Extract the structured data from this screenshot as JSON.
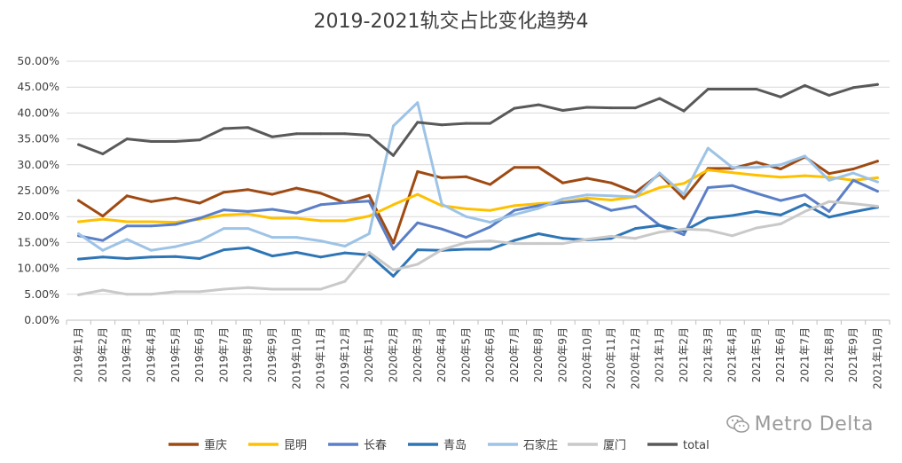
{
  "chart_data": {
    "type": "line",
    "title": "2019-2021轨交占比变化趋势4",
    "ylim": [
      0,
      0.5
    ],
    "yticks": [
      "0.00%",
      "5.00%",
      "10.00%",
      "15.00%",
      "20.00%",
      "25.00%",
      "30.00%",
      "35.00%",
      "40.00%",
      "45.00%",
      "50.00%"
    ],
    "grid": true,
    "legend_position": "bottom",
    "categories": [
      "2019年1月",
      "2019年2月",
      "2019年3月",
      "2019年4月",
      "2019年5月",
      "2019年6月",
      "2019年7月",
      "2019年8月",
      "2019年9月",
      "2019年10月",
      "2019年11月",
      "2019年12月",
      "2020年1月",
      "2020年2月",
      "2020年3月",
      "2020年4月",
      "2020年5月",
      "2020年6月",
      "2020年7月",
      "2020年8月",
      "2020年9月",
      "2020年10月",
      "2020年11月",
      "2020年12月",
      "2021年1月",
      "2021年2月",
      "2021年3月",
      "2021年4月",
      "2021年5月",
      "2021年6月",
      "2021年7月",
      "2021年8月",
      "2021年9月",
      "2021年10月"
    ],
    "series": [
      {
        "name": "重庆",
        "color": "#9E4A12",
        "values": [
          0.231,
          0.201,
          0.24,
          0.229,
          0.236,
          0.226,
          0.247,
          0.252,
          0.243,
          0.255,
          0.245,
          0.227,
          0.241,
          0.149,
          0.287,
          0.275,
          0.277,
          0.262,
          0.295,
          0.295,
          0.265,
          0.274,
          0.265,
          0.247,
          0.282,
          0.235,
          0.293,
          0.293,
          0.305,
          0.292,
          0.315,
          0.283,
          0.292,
          0.307
        ]
      },
      {
        "name": "昆明",
        "color": "#FFC000",
        "values": [
          0.19,
          0.195,
          0.19,
          0.19,
          0.189,
          0.195,
          0.203,
          0.205,
          0.197,
          0.197,
          0.192,
          0.192,
          0.201,
          0.223,
          0.243,
          0.221,
          0.215,
          0.212,
          0.221,
          0.225,
          0.228,
          0.236,
          0.232,
          0.238,
          0.256,
          0.264,
          0.29,
          0.285,
          0.28,
          0.276,
          0.279,
          0.276,
          0.27,
          0.275
        ]
      },
      {
        "name": "长春",
        "color": "#5B7FC7",
        "values": [
          0.163,
          0.154,
          0.182,
          0.182,
          0.185,
          0.197,
          0.213,
          0.21,
          0.214,
          0.207,
          0.223,
          0.227,
          0.23,
          0.137,
          0.188,
          0.176,
          0.16,
          0.18,
          0.212,
          0.221,
          0.227,
          0.231,
          0.212,
          0.22,
          0.183,
          0.165,
          0.256,
          0.26,
          0.245,
          0.231,
          0.242,
          0.21,
          0.27,
          0.249
        ]
      },
      {
        "name": "青岛",
        "color": "#2E75B6",
        "values": [
          0.118,
          0.122,
          0.119,
          0.122,
          0.123,
          0.119,
          0.136,
          0.14,
          0.124,
          0.131,
          0.122,
          0.13,
          0.126,
          0.085,
          0.136,
          0.135,
          0.137,
          0.137,
          0.154,
          0.167,
          0.158,
          0.155,
          0.158,
          0.177,
          0.183,
          0.172,
          0.197,
          0.202,
          0.21,
          0.203,
          0.224,
          0.199,
          0.209,
          0.218
        ]
      },
      {
        "name": "石家庄",
        "color": "#9DC3E6",
        "values": [
          0.167,
          0.135,
          0.156,
          0.135,
          0.142,
          0.153,
          0.177,
          0.177,
          0.16,
          0.16,
          0.153,
          0.143,
          0.167,
          0.375,
          0.42,
          0.224,
          0.2,
          0.189,
          0.204,
          0.216,
          0.234,
          0.242,
          0.24,
          0.238,
          0.284,
          0.243,
          0.332,
          0.295,
          0.295,
          0.3,
          0.317,
          0.27,
          0.284,
          0.267
        ]
      },
      {
        "name": "厦门",
        "color": "#C9C9C9",
        "values": [
          0.049,
          0.058,
          0.05,
          0.05,
          0.055,
          0.055,
          0.06,
          0.063,
          0.06,
          0.06,
          0.06,
          0.075,
          0.131,
          0.097,
          0.108,
          0.136,
          0.15,
          0.153,
          0.148,
          0.148,
          0.148,
          0.156,
          0.162,
          0.158,
          0.17,
          0.176,
          0.174,
          0.163,
          0.178,
          0.186,
          0.21,
          0.229,
          0.225,
          0.22
        ]
      },
      {
        "name": "total",
        "color": "#595959",
        "values": [
          0.339,
          0.321,
          0.35,
          0.345,
          0.345,
          0.348,
          0.37,
          0.372,
          0.354,
          0.36,
          0.36,
          0.36,
          0.357,
          0.318,
          0.382,
          0.377,
          0.38,
          0.38,
          0.409,
          0.416,
          0.405,
          0.411,
          0.41,
          0.41,
          0.428,
          0.404,
          0.446,
          0.446,
          0.446,
          0.431,
          0.453,
          0.434,
          0.449,
          0.455
        ]
      }
    ]
  },
  "watermark": {
    "text": "Metro Delta",
    "icon": "wechat-icon"
  }
}
